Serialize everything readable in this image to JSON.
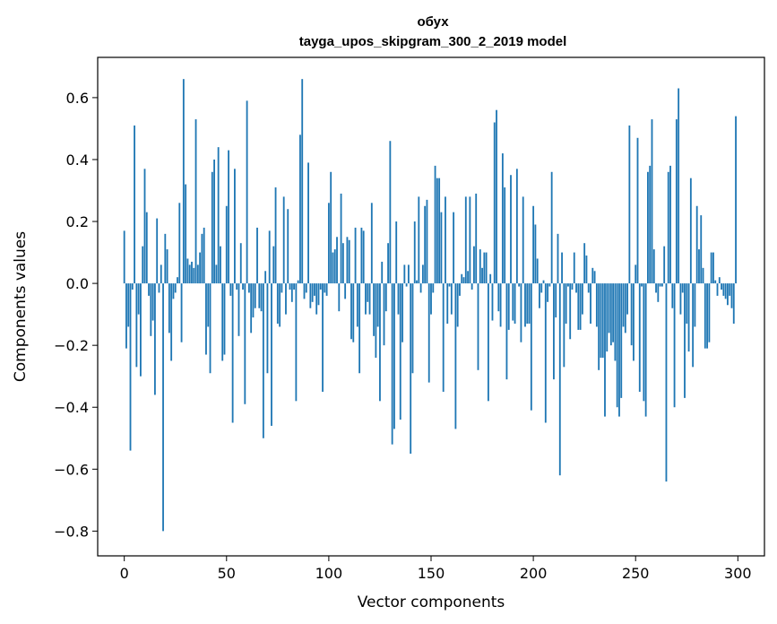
{
  "chart_data": {
    "type": "bar",
    "title": "обух",
    "subtitle": "tayga_upos_skipgram_300_2_2019 model",
    "xlabel": "Vector components",
    "ylabel": "Components values",
    "xlim": [
      -13,
      313
    ],
    "ylim": [
      -0.88,
      0.73
    ],
    "xticks": [
      0,
      50,
      100,
      150,
      200,
      250,
      300
    ],
    "xtick_labels": [
      "0",
      "50",
      "100",
      "150",
      "200",
      "250",
      "300"
    ],
    "yticks": [
      -0.8,
      -0.6,
      -0.4,
      -0.2,
      0.0,
      0.2,
      0.4,
      0.6
    ],
    "ytick_labels": [
      "−0.8",
      "−0.6",
      "−0.4",
      "−0.2",
      "0.0",
      "0.2",
      "0.4",
      "0.6"
    ],
    "bar_color": "#1f77b4",
    "grid": false,
    "legend": false,
    "x_start": 0,
    "values": [
      0.17,
      -0.21,
      -0.14,
      -0.54,
      -0.02,
      0.51,
      -0.27,
      -0.1,
      -0.3,
      0.12,
      0.37,
      0.23,
      -0.04,
      -0.17,
      -0.12,
      -0.36,
      0.21,
      -0.03,
      0.06,
      -0.8,
      0.16,
      0.11,
      -0.16,
      -0.25,
      -0.05,
      -0.03,
      0.02,
      0.26,
      -0.19,
      0.66,
      0.32,
      0.08,
      0.06,
      0.07,
      0.05,
      0.53,
      0.06,
      0.1,
      0.16,
      0.18,
      -0.23,
      -0.14,
      -0.29,
      0.36,
      0.4,
      0.06,
      0.44,
      0.12,
      -0.25,
      -0.23,
      0.25,
      0.43,
      -0.04,
      -0.45,
      0.37,
      -0.02,
      -0.17,
      0.13,
      -0.02,
      -0.39,
      0.59,
      -0.03,
      -0.16,
      -0.11,
      -0.08,
      0.18,
      -0.08,
      -0.09,
      -0.5,
      0.04,
      -0.29,
      0.17,
      -0.46,
      0.12,
      0.31,
      -0.13,
      -0.14,
      -0.03,
      0.28,
      -0.1,
      0.24,
      -0.02,
      -0.06,
      -0.02,
      -0.38,
      0.01,
      0.48,
      0.66,
      -0.05,
      -0.03,
      0.39,
      -0.08,
      -0.06,
      -0.04,
      -0.1,
      -0.07,
      -0.02,
      -0.35,
      -0.03,
      -0.04,
      0.26,
      0.36,
      0.1,
      0.11,
      0.15,
      -0.09,
      0.29,
      0.13,
      -0.05,
      0.15,
      0.14,
      -0.18,
      -0.19,
      0.18,
      -0.14,
      -0.29,
      0.18,
      0.17,
      -0.1,
      -0.06,
      -0.1,
      0.26,
      -0.17,
      -0.24,
      -0.14,
      -0.38,
      0.07,
      -0.2,
      -0.09,
      0.13,
      0.46,
      -0.52,
      -0.47,
      0.2,
      -0.1,
      -0.44,
      -0.19,
      0.06,
      -0.01,
      0.06,
      -0.55,
      -0.29,
      0.2,
      0.01,
      0.28,
      -0.03,
      0.06,
      0.25,
      0.27,
      -0.32,
      -0.1,
      -0.03,
      0.38,
      0.34,
      0.34,
      0.23,
      -0.35,
      0.28,
      -0.13,
      -0.01,
      -0.1,
      0.23,
      -0.47,
      -0.14,
      -0.04,
      0.03,
      0.02,
      0.28,
      0.04,
      0.28,
      -0.02,
      0.12,
      0.29,
      -0.28,
      0.11,
      0.05,
      0.1,
      0.1,
      -0.38,
      0.03,
      -0.12,
      0.52,
      0.56,
      -0.09,
      -0.14,
      0.42,
      0.31,
      -0.31,
      -0.15,
      0.35,
      -0.12,
      -0.13,
      0.37,
      -0.01,
      -0.19,
      0.28,
      -0.14,
      -0.13,
      -0.13,
      -0.41,
      0.25,
      0.19,
      0.08,
      -0.08,
      -0.03,
      0.01,
      -0.45,
      -0.06,
      -0.01,
      0.36,
      -0.31,
      -0.11,
      0.16,
      -0.62,
      0.1,
      -0.27,
      -0.13,
      -0.01,
      -0.18,
      -0.02,
      0.1,
      -0.03,
      -0.15,
      -0.15,
      -0.1,
      0.13,
      0.09,
      -0.03,
      -0.13,
      0.05,
      0.04,
      -0.14,
      -0.28,
      -0.24,
      -0.24,
      -0.43,
      -0.22,
      -0.16,
      -0.2,
      -0.19,
      -0.25,
      -0.4,
      -0.43,
      -0.37,
      -0.14,
      -0.16,
      -0.1,
      0.51,
      -0.2,
      -0.25,
      0.06,
      0.47,
      -0.35,
      -0.01,
      -0.38,
      -0.43,
      0.36,
      0.38,
      0.53,
      0.11,
      -0.03,
      -0.06,
      -0.01,
      -0.01,
      0.12,
      -0.64,
      0.36,
      0.38,
      -0.08,
      -0.4,
      0.53,
      0.63,
      -0.1,
      -0.03,
      -0.37,
      -0.13,
      -0.22,
      0.34,
      -0.27,
      -0.14,
      0.25,
      0.11,
      0.22,
      0.05,
      -0.21,
      -0.21,
      -0.19,
      0.1,
      0.1,
      0.01,
      -0.04,
      0.02,
      -0.02,
      -0.04,
      -0.05,
      -0.07,
      -0.04,
      -0.08,
      -0.13,
      0.54
    ]
  }
}
